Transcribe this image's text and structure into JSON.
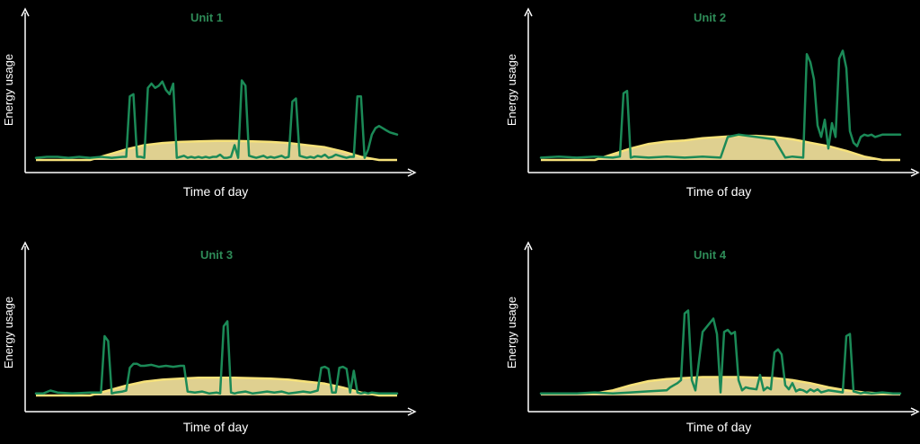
{
  "colors": {
    "background": "#000000",
    "axis": "#ffffff",
    "title": "#2e8b57",
    "usage_line": "#1b8a57",
    "solar_fill": "#f7e7a0",
    "solar_line": "#f6e27a"
  },
  "chart_data": [
    {
      "type": "line",
      "title": "Unit 1",
      "xlabel": "Time of day",
      "ylabel": "Energy usage",
      "xlim": [
        0,
        100
      ],
      "ylim": [
        0,
        100
      ],
      "grid": false,
      "series": [
        {
          "style": "area",
          "x": [
            0,
            15,
            20,
            25,
            30,
            35,
            40,
            45,
            50,
            55,
            60,
            65,
            70,
            75,
            80,
            85,
            90,
            95,
            100
          ],
          "values": [
            0,
            0,
            5,
            10,
            14,
            16,
            17,
            17.5,
            18,
            18,
            17.5,
            17,
            16,
            14,
            12,
            8,
            3,
            0,
            0
          ]
        },
        {
          "style": "line",
          "x": [
            0,
            3,
            6,
            9,
            12,
            15,
            18,
            21,
            24,
            25,
            26,
            27,
            28,
            29,
            30,
            31,
            32,
            33,
            34,
            35,
            36,
            37,
            38,
            39,
            40,
            41,
            42,
            43,
            44,
            45,
            46,
            47,
            48,
            49,
            50,
            51,
            52,
            53,
            54,
            55,
            56,
            57,
            58,
            59,
            60,
            61,
            62,
            63,
            64,
            65,
            66,
            67,
            68,
            69,
            70,
            71,
            72,
            73,
            74,
            75,
            76,
            77,
            78,
            79,
            80,
            81,
            82,
            83,
            84,
            85,
            86,
            87,
            88,
            89,
            90,
            91,
            92,
            93,
            94,
            95,
            96,
            97,
            98,
            99,
            100
          ],
          "values": [
            2,
            3,
            3,
            2,
            3,
            2,
            3,
            2,
            3,
            3,
            60,
            62,
            3,
            3,
            2,
            68,
            72,
            68,
            70,
            74,
            66,
            62,
            72,
            2,
            3,
            4,
            2,
            3,
            2,
            3,
            2,
            3,
            2,
            3,
            3,
            5,
            2,
            2,
            3,
            14,
            2,
            75,
            70,
            4,
            3,
            2,
            3,
            4,
            2,
            3,
            2,
            3,
            4,
            2,
            3,
            55,
            58,
            4,
            3,
            2,
            3,
            2,
            4,
            3,
            5,
            2,
            3,
            5,
            4,
            3,
            2,
            3,
            3,
            60,
            60,
            2,
            10,
            24,
            30,
            32,
            30,
            28,
            26,
            25,
            24
          ]
        }
      ]
    },
    {
      "type": "line",
      "title": "Unit 2",
      "xlabel": "Time of day",
      "ylabel": "Energy usage",
      "xlim": [
        0,
        100
      ],
      "ylim": [
        0,
        100
      ],
      "grid": false,
      "series": [
        {
          "style": "area",
          "x": [
            0,
            15,
            20,
            25,
            30,
            35,
            40,
            45,
            50,
            55,
            60,
            65,
            70,
            75,
            80,
            85,
            90,
            95,
            100
          ],
          "values": [
            0,
            0,
            5,
            10,
            14,
            16,
            17,
            19,
            20,
            21,
            21,
            20,
            18,
            15,
            12,
            8,
            3,
            0,
            0
          ]
        },
        {
          "style": "line",
          "x": [
            0,
            5,
            10,
            15,
            20,
            22,
            23,
            24,
            25,
            26,
            30,
            35,
            40,
            45,
            50,
            52,
            55,
            60,
            65,
            68,
            70,
            73,
            74,
            75,
            76,
            77,
            78,
            79,
            80,
            81,
            82,
            83,
            84,
            85,
            86,
            87,
            88,
            89,
            90,
            91,
            92,
            93,
            95,
            97,
            100
          ],
          "values": [
            2,
            3,
            2,
            3,
            2,
            3,
            58,
            60,
            2,
            3,
            2,
            3,
            2,
            3,
            2,
            20,
            22,
            20,
            18,
            2,
            3,
            2,
            92,
            85,
            70,
            30,
            20,
            35,
            10,
            32,
            20,
            88,
            95,
            80,
            25,
            15,
            12,
            20,
            22,
            21,
            22,
            20,
            22,
            22,
            22
          ]
        }
      ]
    },
    {
      "type": "line",
      "title": "Unit 3",
      "xlabel": "Time of day",
      "ylabel": "Energy usage",
      "xlim": [
        0,
        100
      ],
      "ylim": [
        0,
        100
      ],
      "grid": false,
      "series": [
        {
          "style": "area",
          "x": [
            0,
            15,
            20,
            25,
            30,
            35,
            40,
            45,
            50,
            55,
            60,
            65,
            70,
            75,
            80,
            85,
            90,
            95,
            100
          ],
          "values": [
            0,
            0,
            5,
            10,
            14,
            16,
            17,
            18,
            18,
            18,
            17.5,
            17,
            16,
            14,
            12,
            8,
            3,
            0,
            0
          ]
        },
        {
          "style": "line",
          "x": [
            0,
            2,
            4,
            6,
            10,
            15,
            17,
            18,
            19,
            20,
            21,
            22,
            24,
            25,
            26,
            27,
            28,
            29,
            30,
            32,
            34,
            36,
            38,
            40,
            41,
            42,
            44,
            46,
            48,
            50,
            51,
            52,
            53,
            54,
            55,
            56,
            58,
            60,
            62,
            64,
            66,
            68,
            70,
            72,
            74,
            76,
            78,
            79,
            80,
            81,
            82,
            83,
            84,
            85,
            86,
            87,
            88,
            89,
            90,
            91,
            92,
            93,
            95,
            98,
            100
          ],
          "values": [
            2,
            2,
            5,
            3,
            2,
            3,
            3,
            3,
            60,
            55,
            2,
            3,
            4,
            5,
            28,
            32,
            32,
            30,
            30,
            31,
            29,
            30,
            29,
            30,
            30,
            4,
            3,
            4,
            2,
            3,
            2,
            70,
            75,
            3,
            2,
            3,
            4,
            2,
            3,
            4,
            3,
            4,
            2,
            3,
            4,
            3,
            5,
            28,
            29,
            27,
            3,
            3,
            28,
            29,
            27,
            3,
            25,
            3,
            2,
            3,
            2,
            3,
            2,
            2,
            2
          ]
        }
      ]
    },
    {
      "type": "line",
      "title": "Unit 4",
      "xlabel": "Time of day",
      "ylabel": "Energy usage",
      "xlim": [
        0,
        100
      ],
      "ylim": [
        0,
        100
      ],
      "grid": false,
      "series": [
        {
          "style": "area",
          "x": [
            0,
            15,
            20,
            25,
            30,
            35,
            40,
            45,
            50,
            55,
            60,
            65,
            70,
            75,
            80,
            85,
            90,
            95,
            100
          ],
          "values": [
            2,
            2,
            5,
            10,
            14,
            16,
            17,
            18,
            18,
            18,
            17.5,
            17,
            15,
            12,
            8,
            5,
            3,
            2,
            2
          ]
        },
        {
          "style": "line",
          "x": [
            0,
            5,
            10,
            15,
            20,
            25,
            30,
            35,
            36,
            37,
            38,
            39,
            40,
            41,
            42,
            43,
            45,
            48,
            49,
            50,
            51,
            52,
            53,
            54,
            55,
            56,
            57,
            58,
            60,
            61,
            62,
            63,
            64,
            65,
            66,
            67,
            68,
            69,
            70,
            71,
            72,
            73,
            74,
            75,
            76,
            77,
            78,
            80,
            82,
            84,
            85,
            86,
            87,
            88,
            89,
            90,
            92,
            95,
            98,
            100
          ],
          "values": [
            2,
            2,
            2,
            3,
            2,
            3,
            4,
            5,
            8,
            10,
            12,
            15,
            80,
            83,
            15,
            5,
            62,
            75,
            60,
            3,
            62,
            64,
            60,
            62,
            15,
            5,
            8,
            7,
            6,
            20,
            5,
            8,
            6,
            42,
            45,
            40,
            10,
            6,
            12,
            4,
            6,
            5,
            3,
            6,
            4,
            6,
            3,
            5,
            4,
            3,
            58,
            60,
            4,
            3,
            2,
            3,
            2,
            3,
            2,
            2
          ]
        }
      ]
    }
  ]
}
